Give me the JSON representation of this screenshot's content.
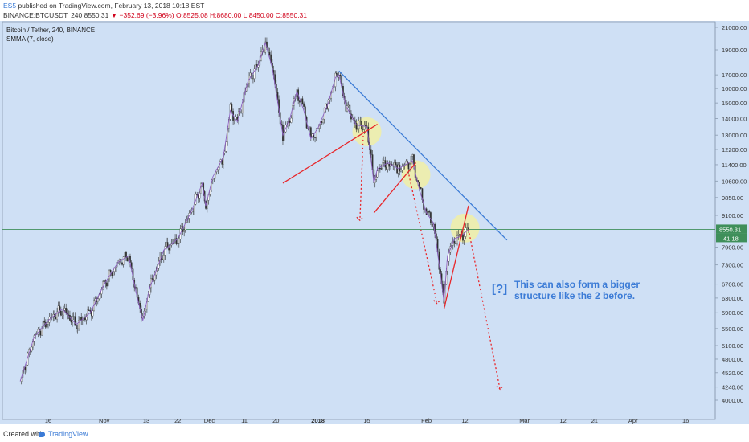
{
  "header": {
    "author": "ES5",
    "published": "published on TradingView.com, February 13, 2018 10:18 EST",
    "symbol_line": "BINANCE:BTCUSDT, 240",
    "last": "8550.31",
    "change": "−352.69 (−3.96%)",
    "ohlc": "O:8525.08 H:8680.00 L:8450.00 C:8550.31"
  },
  "legend": {
    "title": "Bitcoin / Tether, 240, BINANCE",
    "indicator": "SMMA (7, close)"
  },
  "price_badges": {
    "price": "8550.31",
    "countdown": "41:18"
  },
  "annotation": {
    "marker": "[?]",
    "line1": "This can also form a bigger",
    "line2": "structure like the 2 before."
  },
  "footer": {
    "created": "Created with",
    "brand": "TradingView"
  },
  "colors": {
    "background": "#cfe0f5",
    "trendline": "#3b7bd6",
    "support": "#e8262a",
    "projection": "#e8262a",
    "circle": "#f5f29a",
    "price_line": "#3f8f5a",
    "badge": "#3f8f5a"
  },
  "chart_data": {
    "type": "line",
    "title": "Bitcoin / Tether, 240, BINANCE",
    "y_scale": "log",
    "ylim": [
      3800,
      21500
    ],
    "y_ticks": [
      21000,
      19000,
      17000,
      16000,
      15000,
      14000,
      13000,
      12200,
      11400,
      10600,
      9850,
      9100,
      7900,
      7300,
      6700,
      6300,
      5900,
      5500,
      5100,
      4800,
      4520,
      4240,
      4000
    ],
    "x_ticks": [
      "16",
      "Nov",
      "13",
      "22",
      "Dec",
      "11",
      "20",
      "2018",
      "15",
      "Feb",
      "12",
      "Mar",
      "12",
      "21",
      "Apr",
      "16"
    ],
    "series": [
      {
        "name": "",
        "values": [
          [
            "2017-10-08",
            4350
          ],
          [
            "2017-10-12",
            5300
          ],
          [
            "2017-10-16",
            5700
          ],
          [
            "2017-10-20",
            6000
          ],
          [
            "2017-10-24",
            5600
          ],
          [
            "2017-10-28",
            5900
          ],
          [
            "2017-11-01",
            6700
          ],
          [
            "2017-11-05",
            7400
          ],
          [
            "2017-11-08",
            7600
          ],
          [
            "2017-11-10",
            6500
          ],
          [
            "2017-11-12",
            5700
          ],
          [
            "2017-11-14",
            6600
          ],
          [
            "2017-11-18",
            7800
          ],
          [
            "2017-11-22",
            8200
          ],
          [
            "2017-11-26",
            9300
          ],
          [
            "2017-11-29",
            10500
          ],
          [
            "2017-11-30",
            9500
          ],
          [
            "2017-12-02",
            10800
          ],
          [
            "2017-12-05",
            11800
          ],
          [
            "2017-12-07",
            14500
          ],
          [
            "2017-12-09",
            13800
          ],
          [
            "2017-12-12",
            16500
          ],
          [
            "2017-12-15",
            17800
          ],
          [
            "2017-12-17",
            19600
          ],
          [
            "2017-12-19",
            17500
          ],
          [
            "2017-12-22",
            13000
          ],
          [
            "2017-12-24",
            14000
          ],
          [
            "2017-12-26",
            15800
          ],
          [
            "2017-12-28",
            14500
          ],
          [
            "2017-12-30",
            12800
          ],
          [
            "2018-01-01",
            13400
          ],
          [
            "2018-01-04",
            15000
          ],
          [
            "2018-01-06",
            16800
          ],
          [
            "2018-01-07",
            17000
          ],
          [
            "2018-01-09",
            14800
          ],
          [
            "2018-01-12",
            13600
          ],
          [
            "2018-01-15",
            13500
          ],
          [
            "2018-01-17",
            10500
          ],
          [
            "2018-01-18",
            11200
          ],
          [
            "2018-01-21",
            11500
          ],
          [
            "2018-01-24",
            11200
          ],
          [
            "2018-01-28",
            11600
          ],
          [
            "2018-01-30",
            10200
          ],
          [
            "2018-02-01",
            9200
          ],
          [
            "2018-02-03",
            8800
          ],
          [
            "2018-02-05",
            7000
          ],
          [
            "2018-02-06",
            6200
          ],
          [
            "2018-02-07",
            7600
          ],
          [
            "2018-02-09",
            8200
          ],
          [
            "2018-02-11",
            8300
          ],
          [
            "2018-02-13",
            8550
          ]
        ]
      }
    ],
    "trendlines": [
      {
        "role": "resistance",
        "from": [
          "2018-01-07",
          17300
        ],
        "to": [
          "2018-02-24",
          8150
        ]
      },
      {
        "role": "support",
        "from": [
          "2017-12-22",
          10500
        ],
        "to": [
          "2018-01-18",
          13650
        ]
      },
      {
        "role": "support",
        "from": [
          "2018-01-17",
          9200
        ],
        "to": [
          "2018-01-29",
          11500
        ]
      },
      {
        "role": "support",
        "from": [
          "2018-02-06",
          6000
        ],
        "to": [
          "2018-02-13",
          9500
        ]
      }
    ],
    "projections": [
      {
        "from": [
          "2018-01-14",
          13200
        ],
        "to": [
          "2018-01-13",
          8900
        ]
      },
      {
        "from": [
          "2018-01-27",
          10900
        ],
        "to": [
          "2018-02-04",
          6150
        ]
      },
      {
        "from": [
          "2018-02-13",
          8550
        ],
        "to": [
          "2018-02-22",
          4200
        ]
      }
    ],
    "highlight_circles": [
      [
        "2018-01-15",
        13200
      ],
      [
        "2018-01-29",
        10900
      ],
      [
        "2018-02-12",
        8600
      ]
    ],
    "current_price": 8550.31
  }
}
